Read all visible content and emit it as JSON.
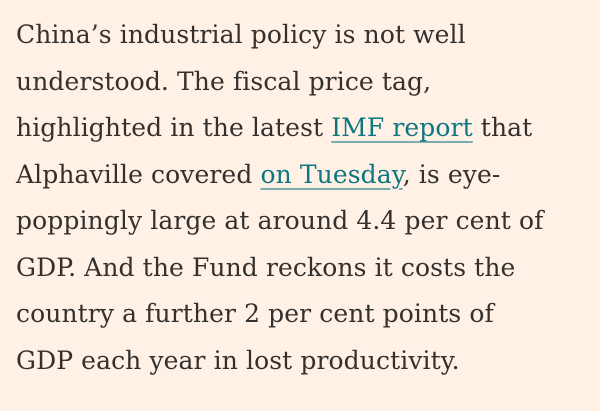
{
  "article": {
    "lines": [
      {
        "text": "China’s industrial policy is not well"
      },
      {
        "text": "understood. The fiscal price tag,"
      },
      {
        "before": "highlighted in the latest ",
        "link": "IMF report",
        "after": " that"
      },
      {
        "before": "Alphaville covered ",
        "link": "on Tuesday",
        "after": ", is eye-"
      },
      {
        "text": "poppingly large at around 4.4 per cent of"
      },
      {
        "text": "GDP. And the Fund reckons it costs the"
      },
      {
        "text": "country a further 2 per cent points of"
      },
      {
        "text": "GDP each year in lost productivity."
      }
    ]
  },
  "colors": {
    "background": "#fff1e5",
    "text": "#33302e",
    "link": "#0d7680"
  }
}
